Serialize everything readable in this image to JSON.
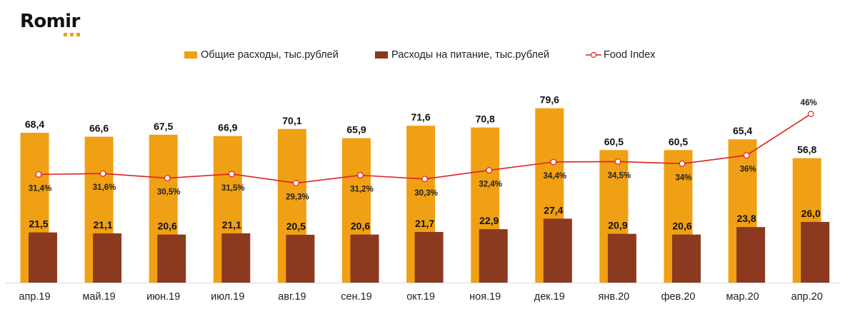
{
  "brand": {
    "name": "Romir",
    "accent": "#f0a014"
  },
  "legend": {
    "total": "Общие расходы, тыс.рублей",
    "food": "Расходы на питание, тыс.рублей",
    "index": "Food Index"
  },
  "chart_data": {
    "type": "bar",
    "categories": [
      "апр.19",
      "май.19",
      "июн.19",
      "июл.19",
      "авг.19",
      "сен.19",
      "окт.19",
      "ноя.19",
      "дек.19",
      "янв.20",
      "фев.20",
      "мар.20",
      "апр.20"
    ],
    "series": [
      {
        "name": "Общие расходы, тыс.рублей",
        "type": "bar",
        "color": "#f0a014",
        "values": [
          68.4,
          66.6,
          67.5,
          66.9,
          70.1,
          65.9,
          71.6,
          70.8,
          79.6,
          60.5,
          60.5,
          65.4,
          56.8
        ],
        "labels": [
          "68,4",
          "66,6",
          "67,5",
          "66,9",
          "70,1",
          "65,9",
          "71,6",
          "70,8",
          "79,6",
          "60,5",
          "60,5",
          "65,4",
          "56,8"
        ]
      },
      {
        "name": "Расходы на питание, тыс.рублей",
        "type": "bar",
        "color": "#8b3a20",
        "values": [
          21.5,
          21.1,
          20.6,
          21.1,
          20.5,
          20.6,
          21.7,
          22.9,
          27.4,
          20.9,
          20.6,
          23.8,
          26.0
        ],
        "labels": [
          "21,5",
          "21,1",
          "20,6",
          "21,1",
          "20,5",
          "20,6",
          "21,7",
          "22,9",
          "27,4",
          "20,9",
          "20,6",
          "23,8",
          "26,0"
        ]
      },
      {
        "name": "Food Index",
        "type": "line",
        "color": "#e02020",
        "values": [
          31.4,
          31.6,
          30.5,
          31.5,
          29.3,
          31.2,
          30.3,
          32.4,
          34.4,
          34.5,
          34,
          36,
          46
        ],
        "labels": [
          "31,4%",
          "31,6%",
          "30,5%",
          "31,5%",
          "29,3%",
          "31,2%",
          "30,3%",
          "32,4%",
          "34,4%",
          "34,5%",
          "34%",
          "36%",
          "46%"
        ]
      }
    ],
    "legend_position": "top-center",
    "grid": false
  }
}
